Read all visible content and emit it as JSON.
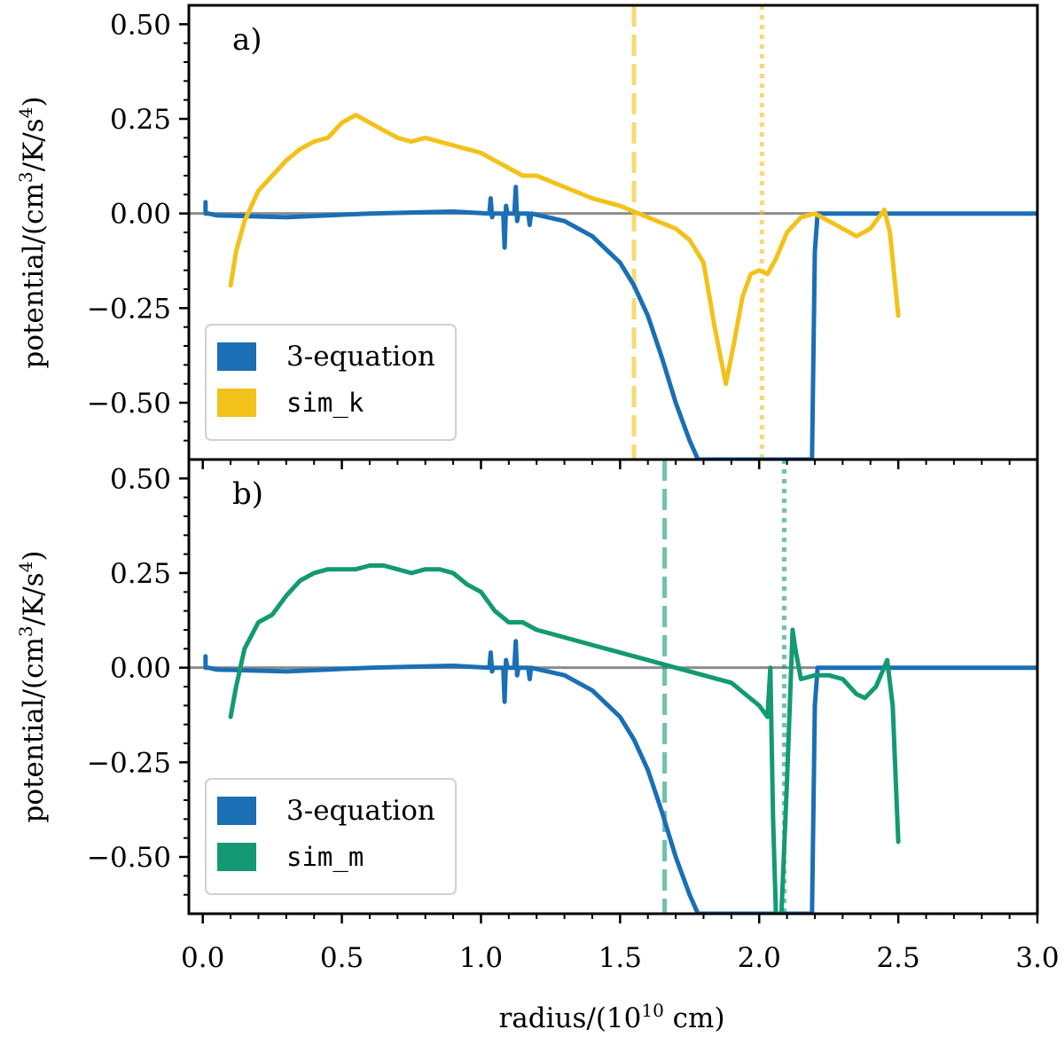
{
  "chart_data": {
    "type": "line",
    "xlabel": "radius/(10",
    "xlabel_exp": "10",
    "xlabel_unit": " cm)",
    "ylabel": "potential/(cm",
    "ylabel_exp1": "3",
    "ylabel_mid": "/K/s",
    "ylabel_exp2": "4",
    "ylabel_end": ")",
    "xlim": [
      -0.05,
      3.0
    ],
    "ylim": [
      -0.65,
      0.55
    ],
    "xticks": [
      0.0,
      0.5,
      1.0,
      1.5,
      2.0,
      2.5,
      3.0
    ],
    "xtick_labels": [
      "0.0",
      "0.5",
      "1.0",
      "1.5",
      "2.0",
      "2.5",
      "3.0"
    ],
    "yticks": [
      0.5,
      0.25,
      0.0,
      -0.25,
      -0.5
    ],
    "ytick_labels": [
      "0.50",
      "0.25",
      "0.00",
      "−0.25",
      "−0.50"
    ],
    "colors": {
      "three_eq": "#1a6fb5",
      "sim_k": "#f2c21b",
      "sim_m": "#139a72",
      "zero_line": "#8c8c8c"
    },
    "panels": [
      {
        "label": "a)",
        "legend": [
          "3-equation",
          "sim_k"
        ],
        "vlines": [
          {
            "x": 1.55,
            "style": "dashed",
            "color": "#f2c21b"
          },
          {
            "x": 2.01,
            "style": "dotted",
            "color": "#f2c21b"
          }
        ],
        "series": [
          {
            "name": "3-equation",
            "color": "#1a6fb5",
            "x": [
              0.01,
              0.01,
              0.02,
              0.05,
              0.3,
              0.6,
              0.9,
              1.03,
              1.035,
              1.04,
              1.045,
              1.08,
              1.085,
              1.09,
              1.095,
              1.12,
              1.125,
              1.13,
              1.135,
              1.17,
              1.175,
              1.18,
              1.3,
              1.4,
              1.5,
              1.55,
              1.6,
              1.65,
              1.7,
              1.75,
              1.78,
              2.19,
              2.2,
              2.21,
              2.5,
              3.0
            ],
            "y": [
              0.03,
              0.0,
              0.0,
              -0.005,
              -0.01,
              0.0,
              0.005,
              0.0,
              0.04,
              -0.01,
              0.0,
              0.0,
              -0.09,
              0.02,
              0.0,
              0.0,
              0.07,
              -0.02,
              0.0,
              0.0,
              -0.03,
              0.0,
              -0.02,
              -0.06,
              -0.13,
              -0.19,
              -0.27,
              -0.38,
              -0.5,
              -0.6,
              -0.65,
              -0.65,
              -0.1,
              0.0,
              0.0,
              0.0
            ]
          },
          {
            "name": "sim_k",
            "color": "#f2c21b",
            "x": [
              0.1,
              0.12,
              0.15,
              0.2,
              0.25,
              0.3,
              0.35,
              0.4,
              0.45,
              0.5,
              0.55,
              0.6,
              0.65,
              0.7,
              0.75,
              0.8,
              0.85,
              0.9,
              0.95,
              1.0,
              1.05,
              1.1,
              1.15,
              1.2,
              1.3,
              1.4,
              1.5,
              1.6,
              1.7,
              1.75,
              1.8,
              1.84,
              1.88,
              1.91,
              1.94,
              1.97,
              2.0,
              2.03,
              2.06,
              2.1,
              2.15,
              2.2,
              2.25,
              2.3,
              2.35,
              2.4,
              2.45,
              2.47,
              2.5
            ],
            "y": [
              -0.19,
              -0.1,
              -0.02,
              0.06,
              0.1,
              0.14,
              0.17,
              0.19,
              0.2,
              0.24,
              0.26,
              0.24,
              0.22,
              0.2,
              0.19,
              0.2,
              0.19,
              0.18,
              0.17,
              0.16,
              0.14,
              0.12,
              0.1,
              0.1,
              0.07,
              0.04,
              0.02,
              -0.01,
              -0.04,
              -0.07,
              -0.13,
              -0.3,
              -0.45,
              -0.34,
              -0.22,
              -0.16,
              -0.15,
              -0.16,
              -0.12,
              -0.05,
              -0.01,
              0.0,
              -0.02,
              -0.04,
              -0.06,
              -0.04,
              0.01,
              -0.05,
              -0.27
            ]
          }
        ]
      },
      {
        "label": "b)",
        "legend": [
          "3-equation",
          "sim_m"
        ],
        "vlines": [
          {
            "x": 1.66,
            "style": "dashed",
            "color": "#139a72"
          },
          {
            "x": 2.09,
            "style": "dotted",
            "color": "#139a72"
          }
        ],
        "series": [
          {
            "name": "3-equation",
            "color": "#1a6fb5",
            "x": [
              0.01,
              0.01,
              0.02,
              0.05,
              0.3,
              0.6,
              0.9,
              1.03,
              1.035,
              1.04,
              1.045,
              1.08,
              1.085,
              1.09,
              1.095,
              1.12,
              1.125,
              1.13,
              1.135,
              1.17,
              1.175,
              1.18,
              1.3,
              1.4,
              1.5,
              1.55,
              1.6,
              1.65,
              1.7,
              1.75,
              1.78,
              2.19,
              2.2,
              2.21,
              2.5,
              3.0
            ],
            "y": [
              0.03,
              0.0,
              0.0,
              -0.005,
              -0.01,
              0.0,
              0.005,
              0.0,
              0.04,
              -0.01,
              0.0,
              0.0,
              -0.09,
              0.02,
              0.0,
              0.0,
              0.07,
              -0.02,
              0.0,
              0.0,
              -0.03,
              0.0,
              -0.02,
              -0.06,
              -0.13,
              -0.19,
              -0.27,
              -0.38,
              -0.5,
              -0.6,
              -0.65,
              -0.65,
              -0.1,
              0.0,
              0.0,
              0.0
            ]
          },
          {
            "name": "sim_m",
            "color": "#139a72",
            "x": [
              0.1,
              0.12,
              0.15,
              0.2,
              0.25,
              0.3,
              0.35,
              0.4,
              0.45,
              0.5,
              0.55,
              0.6,
              0.65,
              0.7,
              0.75,
              0.8,
              0.85,
              0.9,
              0.95,
              1.0,
              1.05,
              1.1,
              1.15,
              1.2,
              1.3,
              1.4,
              1.5,
              1.6,
              1.7,
              1.8,
              1.9,
              1.95,
              2.0,
              2.03,
              2.04,
              2.05,
              2.06,
              2.08,
              2.1,
              2.12,
              2.13,
              2.15,
              2.2,
              2.25,
              2.3,
              2.35,
              2.38,
              2.42,
              2.46,
              2.48,
              2.5
            ],
            "y": [
              -0.13,
              -0.05,
              0.05,
              0.12,
              0.14,
              0.19,
              0.23,
              0.25,
              0.26,
              0.26,
              0.26,
              0.27,
              0.27,
              0.26,
              0.25,
              0.26,
              0.26,
              0.25,
              0.22,
              0.2,
              0.15,
              0.12,
              0.12,
              0.1,
              0.08,
              0.06,
              0.04,
              0.02,
              0.0,
              -0.02,
              -0.04,
              -0.07,
              -0.1,
              -0.13,
              0.0,
              -0.4,
              -0.65,
              -0.65,
              -0.3,
              0.1,
              0.05,
              -0.03,
              -0.02,
              -0.02,
              -0.03,
              -0.07,
              -0.08,
              -0.05,
              0.02,
              -0.1,
              -0.46
            ]
          }
        ]
      }
    ]
  }
}
